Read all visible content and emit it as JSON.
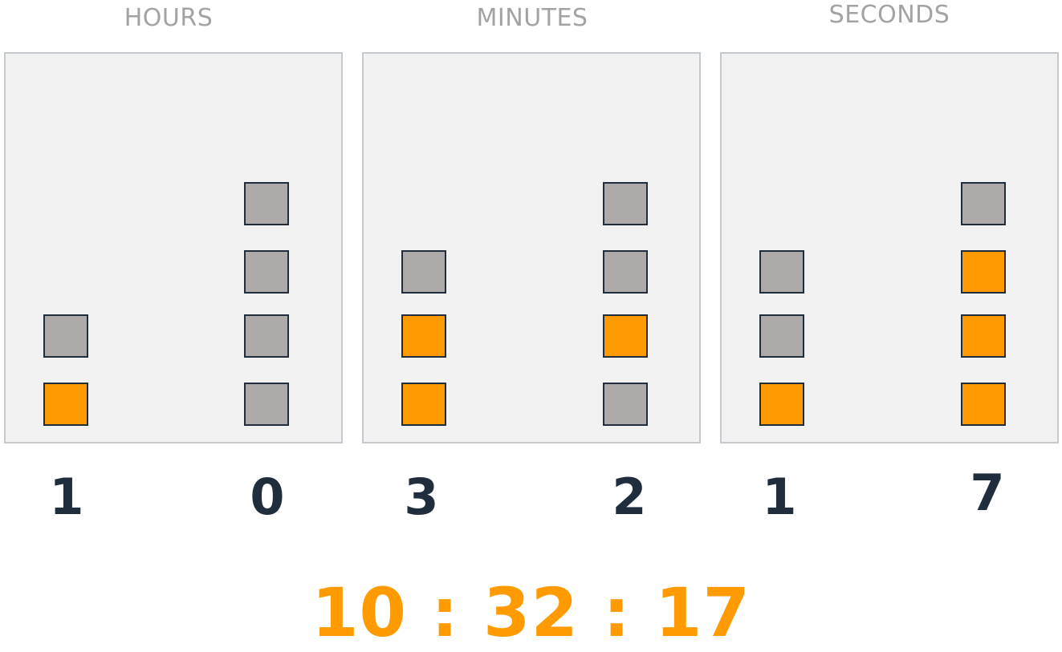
{
  "labels": {
    "hours": "HOURS",
    "minutes": "MINUTES",
    "seconds": "SECONDS"
  },
  "colors": {
    "on": "#ff9b00",
    "off": "#aeaaaa",
    "digit": "#1f2d3d",
    "label": "#a3a3a3"
  },
  "columns": [
    {
      "group": "hours",
      "digit": "1",
      "bits": [
        false,
        true
      ]
    },
    {
      "group": "hours",
      "digit": "0",
      "bits": [
        false,
        false,
        false,
        false
      ]
    },
    {
      "group": "minutes",
      "digit": "3",
      "bits": [
        false,
        true,
        true
      ]
    },
    {
      "group": "minutes",
      "digit": "2",
      "bits": [
        false,
        false,
        true,
        false
      ]
    },
    {
      "group": "seconds",
      "digit": "1",
      "bits": [
        false,
        false,
        true
      ]
    },
    {
      "group": "seconds",
      "digit": "7",
      "bits": [
        false,
        true,
        true,
        true
      ]
    }
  ],
  "time": {
    "display": "10 : 32 : 17"
  }
}
